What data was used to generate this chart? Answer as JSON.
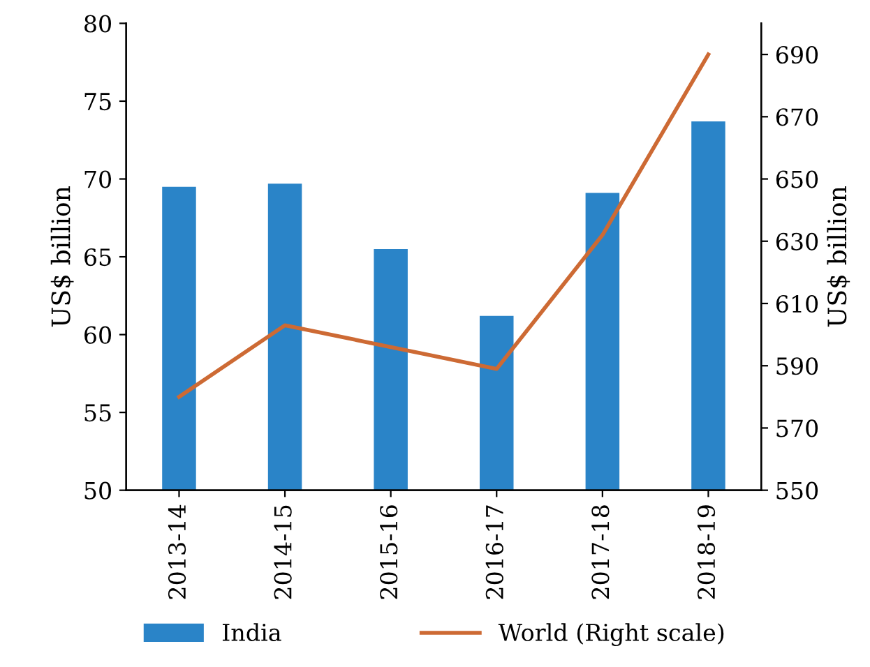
{
  "chart_data": {
    "type": "bar",
    "categories": [
      "2013-14",
      "2014-15",
      "2015-16",
      "2016-17",
      "2017-18",
      "2018-19"
    ],
    "series": [
      {
        "name": "India",
        "color": "#2a84c8",
        "values": [
          69.5,
          69.7,
          65.5,
          61.2,
          69.1,
          73.7
        ]
      },
      {
        "name": "World (Right scale)",
        "type": "line",
        "axis": "y2",
        "color": "#cd6a34",
        "values": [
          580,
          603,
          596,
          589,
          632,
          690
        ]
      }
    ],
    "ylabel": "US$ billion",
    "y2label": "US$ billion",
    "ylim": [
      50,
      80
    ],
    "yticks": [
      50,
      55,
      60,
      65,
      70,
      75,
      80
    ],
    "y2lim": [
      550,
      700
    ],
    "y2ticks": [
      550,
      570,
      590,
      610,
      630,
      650,
      670,
      690
    ],
    "grid": false,
    "legend": "bottom",
    "marker": "none",
    "line_style": "solid"
  }
}
